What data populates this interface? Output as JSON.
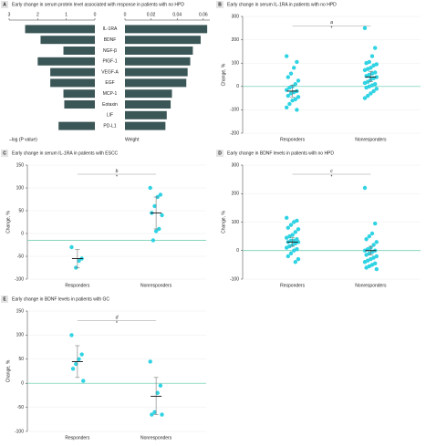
{
  "chart_data": [
    {
      "type": "barpair",
      "label": "A",
      "title": "Early change in serum protein level associated with response in patients with no HPD",
      "categories": [
        "IL-1RA",
        "BDNF",
        "NGF-β",
        "PIGF-1",
        "VEGF-A",
        "EGF",
        "MCP-1",
        "Eotaxin",
        "LIF",
        "PD-L1"
      ],
      "series": [
        {
          "name": "–log (P value)",
          "color": "#3b5656",
          "values": [
            2.44,
            1.9,
            1.1,
            2.0,
            1.56,
            1.56,
            1.1,
            1.07,
            0,
            1.27
          ]
        },
        {
          "name": "Weight",
          "color": "#3b5656",
          "axis": "x2",
          "values": [
            0.063,
            0.058,
            0.052,
            0.05,
            0.048,
            0.047,
            0.036,
            0.035,
            0.032,
            0.031
          ]
        }
      ],
      "xlim": [
        0,
        3
      ],
      "xticks": [
        3,
        2,
        1,
        0
      ],
      "x2lim": [
        0,
        0.065
      ],
      "x2ticks": [
        0,
        0.02,
        0.04,
        0.06
      ]
    },
    {
      "type": "dotplot",
      "label": "B",
      "title": "Early change in serum IL-1RA in patients with no HPD",
      "ylabel": "Change, %",
      "categories": [
        "Responders",
        "Nonresponders"
      ],
      "color": "#2fd3e3",
      "refline": 0,
      "points": [
        [
          130,
          105,
          80,
          55,
          40,
          25,
          10,
          0,
          -5,
          -15,
          -20,
          -25,
          -30,
          -40,
          -45,
          -55,
          -60,
          -75,
          -90,
          -100
        ],
        [
          250,
          165,
          130,
          105,
          100,
          95,
          90,
          80,
          75,
          70,
          60,
          55,
          50,
          45,
          40,
          35,
          30,
          20,
          15,
          10,
          5,
          0,
          -5,
          -10,
          -20,
          -30,
          -40,
          -50
        ]
      ],
      "means": [
        -20,
        40
      ],
      "ci_low": [
        -45,
        20
      ],
      "ci_high": [
        5,
        65
      ],
      "ylim": [
        -200,
        300
      ],
      "yticks": [
        -200,
        -100,
        0,
        100,
        200,
        300
      ],
      "annotation": "a",
      "annotation_mark": "*"
    },
    {
      "type": "dotplot",
      "label": "C",
      "title": "Early change in serum IL-1RA in patients with ESCC",
      "ylabel": "Change, %",
      "categories": [
        "Responders",
        "Nonresponders"
      ],
      "color": "#2fd3e3",
      "refline": -15,
      "points": [
        [
          -30,
          -55,
          -60,
          -75
        ],
        [
          100,
          85,
          80,
          60,
          45,
          40,
          10,
          5,
          -15
        ]
      ],
      "means": [
        -55,
        45
      ],
      "ci_low": [
        -75,
        10
      ],
      "ci_high": [
        -35,
        80
      ],
      "ylim": [
        -100,
        150
      ],
      "yticks": [
        -100,
        -50,
        0,
        50,
        100,
        150
      ],
      "annotation": "b",
      "annotation_mark": "*"
    },
    {
      "type": "dotplot",
      "label": "D",
      "title": "Early change in BDNF levels in patients with no HPD",
      "ylabel": "Change, %",
      "categories": [
        "Responders",
        "Nonresponders"
      ],
      "color": "#2fd3e3",
      "refline": 0,
      "points": [
        [
          115,
          105,
          100,
          90,
          80,
          75,
          65,
          55,
          50,
          45,
          40,
          35,
          35,
          30,
          30,
          25,
          20,
          15,
          10,
          5,
          0,
          -10,
          -20,
          -30,
          -40
        ],
        [
          220,
          95,
          60,
          50,
          40,
          30,
          20,
          10,
          5,
          0,
          0,
          -5,
          -10,
          -15,
          -20,
          -25,
          -30,
          -35,
          -40,
          -45,
          -50,
          -55,
          -60,
          -65
        ]
      ],
      "means": [
        30,
        0
      ],
      "ci_low": [
        15,
        -15
      ],
      "ci_high": [
        45,
        15
      ],
      "ylim": [
        -100,
        300
      ],
      "yticks": [
        -100,
        0,
        100,
        200,
        300
      ],
      "annotation": "c",
      "annotation_mark": "*"
    },
    {
      "type": "dotplot",
      "label": "E",
      "title": "Early change in BDNF levels in patients with GC",
      "ylabel": "Change, %",
      "categories": [
        "Responders",
        "Nonresponders"
      ],
      "color": "#2fd3e3",
      "refline": 0,
      "points": [
        [
          100,
          60,
          50,
          40,
          30,
          5
        ],
        [
          45,
          -5,
          -20,
          -60,
          -65,
          -65
        ]
      ],
      "means": [
        45,
        -27
      ],
      "ci_low": [
        12,
        -65
      ],
      "ci_high": [
        78,
        12
      ],
      "ylim": [
        -100,
        150
      ],
      "yticks": [
        -100,
        -50,
        0,
        50,
        100,
        150
      ],
      "annotation": "d",
      "annotation_mark": "*"
    }
  ]
}
